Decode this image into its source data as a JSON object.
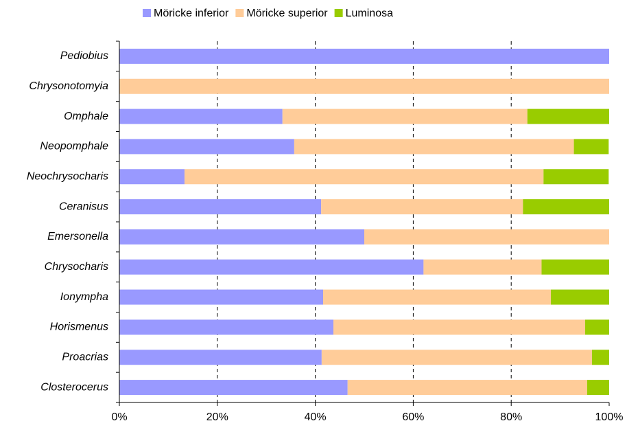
{
  "chart_data": {
    "type": "stacked_barh",
    "categories": [
      "Pediobius",
      "Chrysonotomyia",
      "Omphale",
      "Neopomphale",
      "Neochrysocharis",
      "Ceranisus",
      "Emersonella",
      "Chrysocharis",
      "Ionympha",
      "Horismenus",
      "Proacrias",
      "Closterocerus"
    ],
    "series": [
      {
        "name": "Möricke inferior",
        "color": "#9999ff",
        "values": [
          100,
          0,
          33.3,
          35.7,
          13.3,
          41.2,
          50,
          62.1,
          41.6,
          43.7,
          41.3,
          46.6
        ]
      },
      {
        "name": "Möricke superior",
        "color": "#ffcc99",
        "values": [
          0,
          100,
          50,
          57.1,
          73.3,
          41.2,
          50,
          24.1,
          46.5,
          51.4,
          55.2,
          48.9
        ]
      },
      {
        "name": "Luminosa",
        "color": "#99cc00",
        "values": [
          0,
          0,
          16.7,
          7.1,
          13.3,
          17.6,
          0,
          13.8,
          11.9,
          4.9,
          3.5,
          4.5
        ]
      }
    ],
    "xlim": [
      0,
      100
    ],
    "xticks": [
      {
        "value": 0,
        "label": "0%"
      },
      {
        "value": 20,
        "label": "20%"
      },
      {
        "value": 40,
        "label": "40%"
      },
      {
        "value": 60,
        "label": "60%"
      },
      {
        "value": 80,
        "label": "80%"
      },
      {
        "value": 100,
        "label": "100%"
      }
    ],
    "grid": true,
    "legend": "top"
  }
}
